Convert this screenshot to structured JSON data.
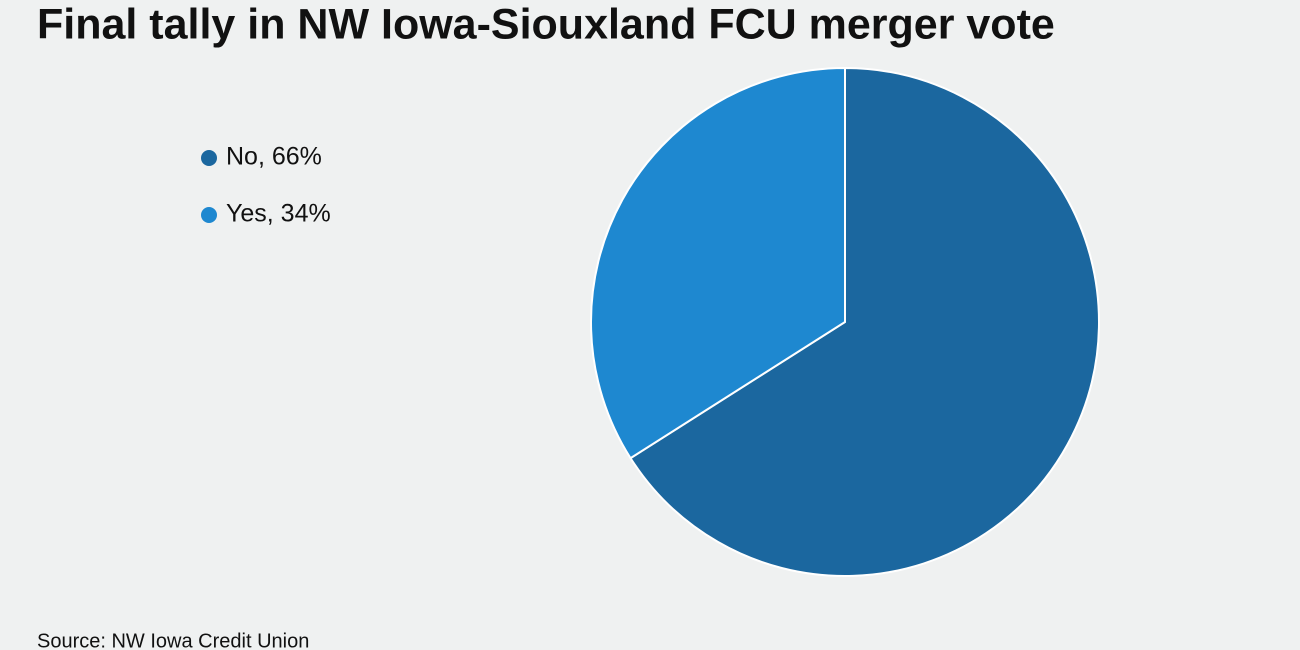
{
  "chart_data": {
    "type": "pie",
    "title": "Final tally in NW Iowa-Siouxland FCU merger vote",
    "categories": [
      "No, 66%",
      "Yes, 34%"
    ],
    "values": [
      66,
      34
    ],
    "colors": [
      "#1b679f",
      "#1e88d0"
    ],
    "legend": "left",
    "source": "Source: NW Iowa Credit Union"
  }
}
